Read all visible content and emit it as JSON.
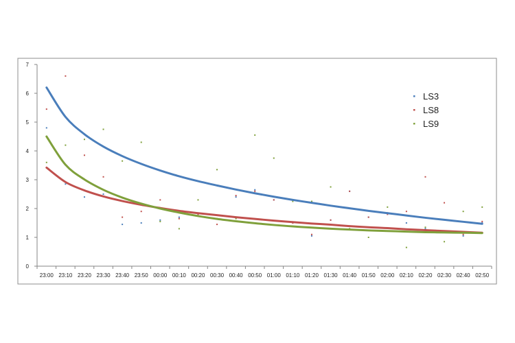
{
  "chart_data": {
    "type": "scatter",
    "title": "",
    "xlabel": "",
    "ylabel": "",
    "ylim": [
      0,
      7
    ],
    "yticks": [
      "0",
      "1",
      "2",
      "3",
      "4",
      "5",
      "6",
      "7"
    ],
    "categories": [
      "23:00",
      "23:10",
      "23:20",
      "23:30",
      "23:40",
      "23:50",
      "00:00",
      "00:10",
      "00:20",
      "00:30",
      "00:40",
      "00:50",
      "01:00",
      "01:10",
      "01:20",
      "01:30",
      "01:40",
      "01:50",
      "02:00",
      "02:10",
      "02:20",
      "02:30",
      "02:40",
      "02:50"
    ],
    "grid": false,
    "legend_position": "right",
    "series": [
      {
        "name": "LS3",
        "color": "#4A7EBB",
        "points": [
          [
            0,
            4.8
          ],
          [
            1,
            2.85
          ],
          [
            2,
            2.4
          ],
          [
            3,
            2.5
          ],
          [
            4,
            1.45
          ],
          [
            5,
            1.5
          ],
          [
            6,
            1.6
          ],
          [
            7,
            1.7
          ],
          [
            8,
            1.75
          ],
          [
            9,
            1.65
          ],
          [
            10,
            2.4
          ],
          [
            11,
            2.65
          ],
          [
            12,
            2.3
          ],
          [
            13,
            1.5
          ],
          [
            14,
            1.05
          ],
          [
            15,
            1.6
          ],
          [
            16,
            2.6
          ],
          [
            17,
            1.7
          ],
          [
            18,
            1.85
          ],
          [
            19,
            1.5
          ],
          [
            20,
            1.3
          ],
          [
            21,
            1.2
          ],
          [
            22,
            1.05
          ],
          [
            23,
            1.5
          ]
        ],
        "trend": [
          6.2,
          5.18,
          4.58,
          4.15,
          3.82,
          3.55,
          3.32,
          3.12,
          2.95,
          2.8,
          2.66,
          2.53,
          2.41,
          2.3,
          2.2,
          2.1,
          2.01,
          1.92,
          1.84,
          1.76,
          1.68,
          1.61,
          1.54,
          1.47
        ]
      },
      {
        "name": "LS8",
        "color": "#C0504D",
        "points": [
          [
            0,
            5.45
          ],
          [
            1,
            6.6
          ],
          [
            2,
            3.85
          ],
          [
            3,
            3.1
          ],
          [
            4,
            1.7
          ],
          [
            5,
            1.9
          ],
          [
            6,
            2.3
          ],
          [
            7,
            1.65
          ],
          [
            8,
            1.8
          ],
          [
            9,
            1.45
          ],
          [
            10,
            2.45
          ],
          [
            11,
            2.6
          ],
          [
            12,
            2.3
          ],
          [
            13,
            1.5
          ],
          [
            14,
            1.1
          ],
          [
            15,
            1.6
          ],
          [
            16,
            2.6
          ],
          [
            17,
            1.7
          ],
          [
            18,
            1.8
          ],
          [
            19,
            1.9
          ],
          [
            20,
            3.1
          ],
          [
            21,
            2.2
          ],
          [
            22,
            1.1
          ],
          [
            23,
            1.55
          ]
        ],
        "trend": [
          3.42,
          2.92,
          2.63,
          2.42,
          2.26,
          2.13,
          2.02,
          1.92,
          1.84,
          1.77,
          1.7,
          1.64,
          1.58,
          1.53,
          1.48,
          1.44,
          1.39,
          1.35,
          1.32,
          1.28,
          1.25,
          1.22,
          1.19,
          1.16
        ]
      },
      {
        "name": "LS9",
        "color": "#7FA03B",
        "points": [
          [
            0,
            3.6
          ],
          [
            1,
            4.2
          ],
          [
            2,
            4.4
          ],
          [
            3,
            4.75
          ],
          [
            4,
            3.65
          ],
          [
            5,
            4.3
          ],
          [
            6,
            1.55
          ],
          [
            7,
            1.3
          ],
          [
            8,
            2.3
          ],
          [
            9,
            3.35
          ],
          [
            10,
            1.65
          ],
          [
            11,
            4.55
          ],
          [
            12,
            3.75
          ],
          [
            13,
            2.25
          ],
          [
            14,
            2.25
          ],
          [
            15,
            2.75
          ],
          [
            16,
            1.3
          ],
          [
            17,
            1.0
          ],
          [
            18,
            2.05
          ],
          [
            19,
            0.65
          ],
          [
            20,
            1.35
          ],
          [
            21,
            0.85
          ],
          [
            22,
            1.9
          ],
          [
            23,
            2.05
          ]
        ],
        "trend": [
          4.5,
          3.52,
          3.01,
          2.65,
          2.38,
          2.17,
          2.0,
          1.86,
          1.74,
          1.64,
          1.56,
          1.49,
          1.43,
          1.38,
          1.34,
          1.3,
          1.27,
          1.24,
          1.22,
          1.2,
          1.18,
          1.17,
          1.16,
          1.15
        ]
      }
    ]
  }
}
